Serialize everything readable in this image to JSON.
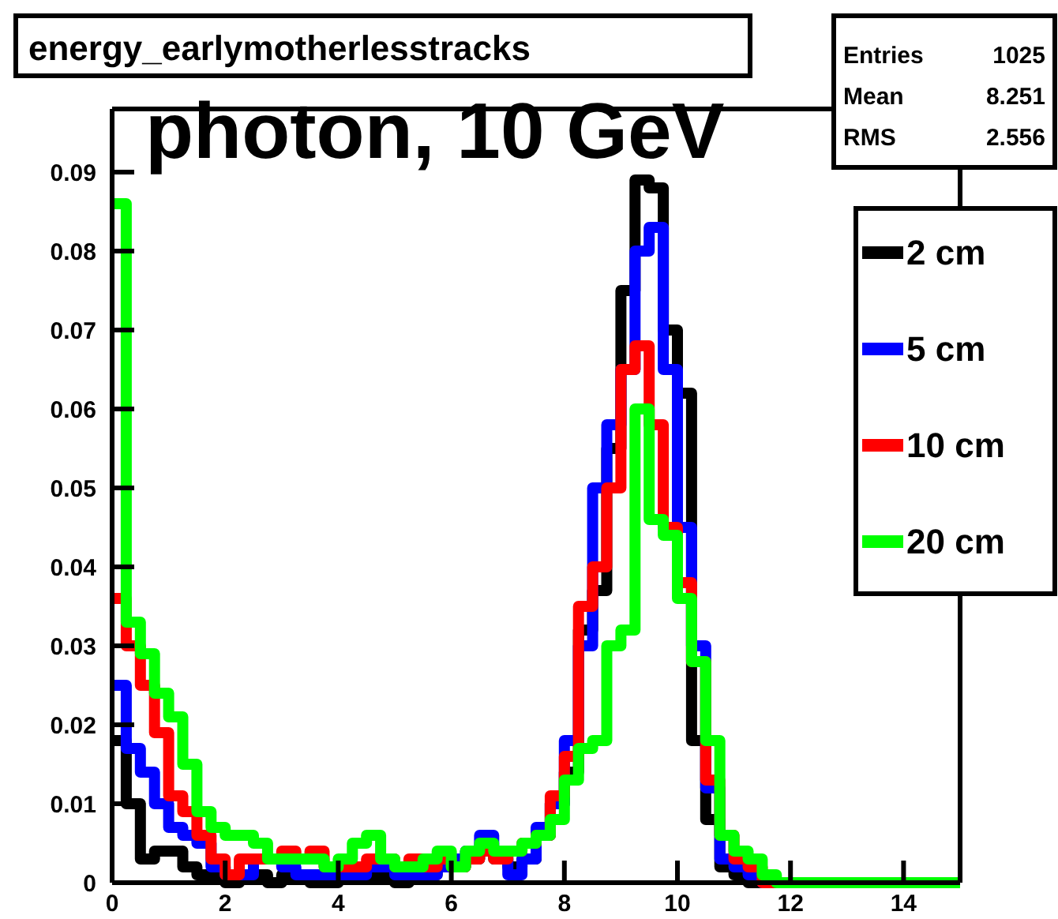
{
  "chart_data": {
    "type": "histogram",
    "title": "energy_earlymotherlesstracks",
    "subtitle": "photon, 10 GeV",
    "bins": [
      0,
      0.25,
      0.5,
      0.75,
      1,
      1.25,
      1.5,
      1.75,
      2,
      2.25,
      2.5,
      2.75,
      3,
      3.25,
      3.5,
      3.75,
      4,
      4.25,
      4.5,
      4.75,
      5,
      5.25,
      5.5,
      5.75,
      6,
      6.25,
      6.5,
      6.75,
      7,
      7.25,
      7.5,
      7.75,
      8,
      8.25,
      8.5,
      8.75,
      9,
      9.25,
      9.5,
      9.75,
      10,
      10.25,
      10.5,
      10.75,
      11,
      11.25,
      11.5,
      11.75,
      12,
      12.25,
      12.5,
      12.75,
      13,
      13.25,
      13.5,
      13.75,
      14,
      14.25,
      14.5,
      14.75,
      15
    ],
    "series": [
      {
        "name": "2 cm",
        "color": "#000000",
        "values": [
          0.018,
          0.01,
          0.003,
          0.004,
          0.004,
          0.002,
          0.001,
          0.001,
          0,
          0.001,
          0.001,
          0,
          0.001,
          0.001,
          0,
          0,
          0.001,
          0.001,
          0.001,
          0.001,
          0,
          0.001,
          0.001,
          0.002,
          0.002,
          0.003,
          0.004,
          0.003,
          0.002,
          0.003,
          0.006,
          0.01,
          0.014,
          0.032,
          0.037,
          0.055,
          0.075,
          0.089,
          0.088,
          0.07,
          0.062,
          0.018,
          0.008,
          0.002,
          0.001,
          0,
          0,
          0,
          0,
          0,
          0,
          0,
          0,
          0,
          0,
          0,
          0,
          0,
          0,
          0
        ]
      },
      {
        "name": "5 cm",
        "color": "#0000ff",
        "values": [
          0.025,
          0.017,
          0.014,
          0.01,
          0.007,
          0.006,
          0.005,
          0.002,
          0.001,
          0.001,
          0.003,
          0.003,
          0.002,
          0.001,
          0.001,
          0.001,
          0.001,
          0.001,
          0.002,
          0.002,
          0.001,
          0.001,
          0.001,
          0.002,
          0.003,
          0.004,
          0.006,
          0.004,
          0.001,
          0.003,
          0.007,
          0.01,
          0.018,
          0.03,
          0.05,
          0.058,
          0.065,
          0.08,
          0.083,
          0.065,
          0.045,
          0.03,
          0.012,
          0.003,
          0.002,
          0.001,
          0,
          0,
          0,
          0,
          0,
          0,
          0,
          0,
          0,
          0,
          0,
          0,
          0,
          0
        ]
      },
      {
        "name": "10 cm",
        "color": "#ff0000",
        "values": [
          0.036,
          0.03,
          0.025,
          0.019,
          0.011,
          0.009,
          0.006,
          0.003,
          0.001,
          0.003,
          0.003,
          0.003,
          0.004,
          0.003,
          0.004,
          0.002,
          0.002,
          0.002,
          0.003,
          0.003,
          0.002,
          0.003,
          0.002,
          0.003,
          0.002,
          0.003,
          0.004,
          0.003,
          0.004,
          0.005,
          0.006,
          0.011,
          0.016,
          0.035,
          0.04,
          0.05,
          0.065,
          0.068,
          0.058,
          0.045,
          0.038,
          0.028,
          0.013,
          0.006,
          0.003,
          0.002,
          0,
          0,
          0,
          0,
          0,
          0,
          0,
          0,
          0,
          0,
          0,
          0,
          0,
          0
        ]
      },
      {
        "name": "20 cm",
        "color": "#00ff00",
        "values": [
          0.086,
          0.033,
          0.029,
          0.024,
          0.021,
          0.015,
          0.009,
          0.007,
          0.006,
          0.006,
          0.005,
          0.003,
          0.003,
          0.003,
          0.003,
          0.002,
          0.003,
          0.005,
          0.006,
          0.003,
          0.002,
          0.002,
          0.003,
          0.004,
          0.002,
          0.004,
          0.005,
          0.004,
          0.004,
          0.005,
          0.006,
          0.008,
          0.013,
          0.017,
          0.018,
          0.03,
          0.032,
          0.06,
          0.046,
          0.044,
          0.036,
          0.028,
          0.018,
          0.006,
          0.004,
          0.003,
          0.001,
          0,
          0,
          0,
          0,
          0,
          0,
          0,
          0,
          0,
          0,
          0,
          0,
          0
        ]
      }
    ],
    "xlim": [
      0,
      15
    ],
    "xticks": [
      0,
      2,
      4,
      6,
      8,
      10,
      12,
      14
    ],
    "ylim": [
      0,
      0.098
    ],
    "yticks": [
      0,
      0.01,
      0.02,
      0.03,
      0.04,
      0.05,
      0.06,
      0.07,
      0.08,
      0.09
    ],
    "legend": "right",
    "grid": false,
    "annotations": [
      "Entries 1025",
      "Mean 8.251",
      "RMS 2.556"
    ]
  }
}
